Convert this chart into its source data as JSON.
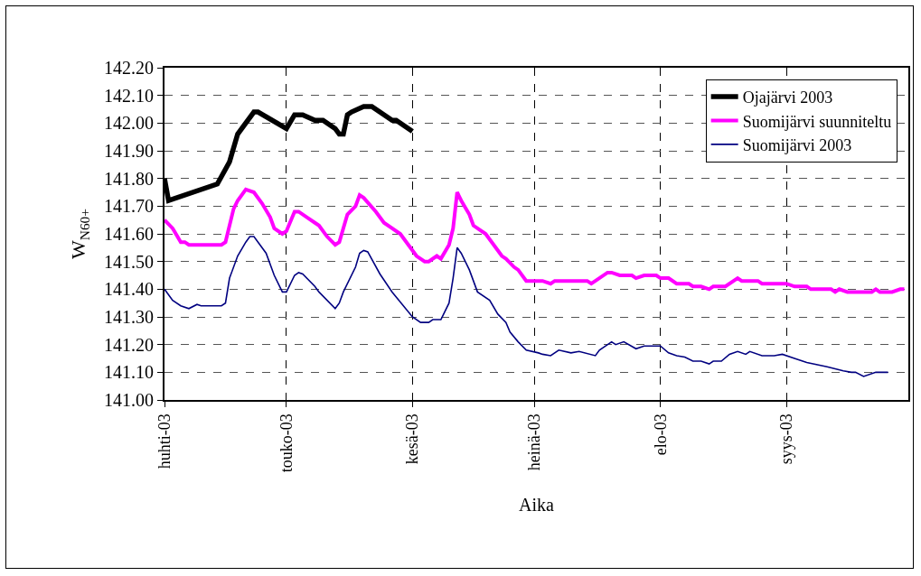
{
  "chart_data": {
    "type": "line",
    "xlabel": "Aika",
    "ylabel": "W$_{N60+}$",
    "legend": "top right",
    "grid": true,
    "line_style": "solid",
    "marker": "none",
    "xlim": [
      "2003-04-01",
      "2003-10-01"
    ],
    "xticks": [
      {
        "value": "2003-04-01",
        "label": "huhti-03"
      },
      {
        "value": "2003-05-01",
        "label": "touko-03"
      },
      {
        "value": "2003-06-01",
        "label": "kesä-03"
      },
      {
        "value": "2003-07-01",
        "label": "heinä-03"
      },
      {
        "value": "2003-08-01",
        "label": "elo-03"
      },
      {
        "value": "2003-09-01",
        "label": "syys-03"
      }
    ],
    "ylim": [
      141.0,
      142.2
    ],
    "yticks": [
      {
        "value": 141.0,
        "label": "141.00"
      },
      {
        "value": 141.1,
        "label": "141.10"
      },
      {
        "value": 141.2,
        "label": "141.20"
      },
      {
        "value": 141.3,
        "label": "141.30"
      },
      {
        "value": 141.4,
        "label": "141.40"
      },
      {
        "value": 141.5,
        "label": "141.50"
      },
      {
        "value": 141.6,
        "label": "141.60"
      },
      {
        "value": 141.7,
        "label": "141.70"
      },
      {
        "value": 141.8,
        "label": "141.80"
      },
      {
        "value": 141.9,
        "label": "141.90"
      },
      {
        "value": 142.0,
        "label": "142.00"
      },
      {
        "value": 142.1,
        "label": "142.10"
      },
      {
        "value": 142.2,
        "label": "142.20"
      }
    ],
    "series": [
      {
        "name": "Ojajärvi 2003",
        "color": "#000000",
        "x": [
          "2003-04-01",
          "2003-04-02",
          "2003-04-14",
          "2003-04-17",
          "2003-04-19",
          "2003-04-23",
          "2003-04-24",
          "2003-05-01",
          "2003-05-03",
          "2003-05-05",
          "2003-05-08",
          "2003-05-10",
          "2003-05-13",
          "2003-05-14",
          "2003-05-15",
          "2003-05-16",
          "2003-05-17",
          "2003-05-20",
          "2003-05-22",
          "2003-05-27",
          "2003-05-28",
          "2003-06-01"
        ],
        "values": [
          141.8,
          141.72,
          141.78,
          141.86,
          141.96,
          142.04,
          142.04,
          141.98,
          142.03,
          142.03,
          142.01,
          142.01,
          141.98,
          141.96,
          141.96,
          142.03,
          142.04,
          142.06,
          142.06,
          142.01,
          142.01,
          141.97
        ]
      },
      {
        "name": "Suomijärvi suunniteltu",
        "color": "#ff00ff",
        "x": [
          "2003-04-01",
          "2003-04-03",
          "2003-04-05",
          "2003-04-06",
          "2003-04-07",
          "2003-04-15",
          "2003-04-16",
          "2003-04-18",
          "2003-04-19",
          "2003-04-21",
          "2003-04-23",
          "2003-04-25",
          "2003-04-27",
          "2003-04-28",
          "2003-04-30",
          "2003-05-01",
          "2003-05-03",
          "2003-05-04",
          "2003-05-06",
          "2003-05-08",
          "2003-05-09",
          "2003-05-11",
          "2003-05-13",
          "2003-05-14",
          "2003-05-16",
          "2003-05-18",
          "2003-05-19",
          "2003-05-20",
          "2003-05-23",
          "2003-05-25",
          "2003-05-29",
          "2003-06-02",
          "2003-06-04",
          "2003-06-05",
          "2003-06-07",
          "2003-06-08",
          "2003-06-10",
          "2003-06-11",
          "2003-06-12",
          "2003-06-13",
          "2003-06-15",
          "2003-06-16",
          "2003-06-19",
          "2003-06-23",
          "2003-06-24",
          "2003-06-26",
          "2003-06-27",
          "2003-06-29",
          "2003-07-03",
          "2003-07-05",
          "2003-07-06",
          "2003-07-14",
          "2003-07-15",
          "2003-07-16",
          "2003-07-19",
          "2003-07-20",
          "2003-07-22",
          "2003-07-25",
          "2003-07-26",
          "2003-07-28",
          "2003-07-31",
          "2003-08-01",
          "2003-08-03",
          "2003-08-05",
          "2003-08-08",
          "2003-08-09",
          "2003-08-11",
          "2003-08-13",
          "2003-08-14",
          "2003-08-17",
          "2003-08-20",
          "2003-08-21",
          "2003-08-25",
          "2003-08-26",
          "2003-09-01",
          "2003-09-03",
          "2003-09-06",
          "2003-09-07",
          "2003-09-12",
          "2003-09-13",
          "2003-09-14",
          "2003-09-16",
          "2003-09-22",
          "2003-09-23",
          "2003-09-24",
          "2003-09-27",
          "2003-09-29",
          "2003-09-30"
        ],
        "values": [
          141.65,
          141.62,
          141.57,
          141.57,
          141.56,
          141.56,
          141.57,
          141.69,
          141.72,
          141.76,
          141.75,
          141.71,
          141.66,
          141.62,
          141.6,
          141.61,
          141.68,
          141.68,
          141.66,
          141.64,
          141.63,
          141.59,
          141.56,
          141.57,
          141.67,
          141.7,
          141.74,
          141.73,
          141.68,
          141.64,
          141.6,
          141.52,
          141.5,
          141.5,
          141.52,
          141.51,
          141.56,
          141.62,
          141.75,
          141.72,
          141.67,
          141.63,
          141.6,
          141.52,
          141.51,
          141.48,
          141.47,
          141.43,
          141.43,
          141.42,
          141.43,
          141.43,
          141.42,
          141.43,
          141.46,
          141.46,
          141.45,
          141.45,
          141.44,
          141.45,
          141.45,
          141.44,
          141.44,
          141.42,
          141.42,
          141.41,
          141.41,
          141.4,
          141.41,
          141.41,
          141.44,
          141.43,
          141.43,
          141.42,
          141.42,
          141.41,
          141.41,
          141.4,
          141.4,
          141.39,
          141.4,
          141.39,
          141.39,
          141.4,
          141.39,
          141.39,
          141.4,
          141.4
        ]
      },
      {
        "name": "Suomijärvi 2003",
        "color": "#000080",
        "x": [
          "2003-04-01",
          "2003-04-03",
          "2003-04-05",
          "2003-04-07",
          "2003-04-09",
          "2003-04-10",
          "2003-04-11",
          "2003-04-15",
          "2003-04-16",
          "2003-04-17",
          "2003-04-19",
          "2003-04-21",
          "2003-04-22",
          "2003-04-23",
          "2003-04-26",
          "2003-04-28",
          "2003-04-30",
          "2003-05-01",
          "2003-05-03",
          "2003-05-04",
          "2003-05-05",
          "2003-05-08",
          "2003-05-09",
          "2003-05-13",
          "2003-05-14",
          "2003-05-15",
          "2003-05-18",
          "2003-05-19",
          "2003-05-20",
          "2003-05-21",
          "2003-05-24",
          "2003-05-27",
          "2003-06-01",
          "2003-06-03",
          "2003-06-05",
          "2003-06-06",
          "2003-06-08",
          "2003-06-09",
          "2003-06-10",
          "2003-06-11",
          "2003-06-12",
          "2003-06-13",
          "2003-06-15",
          "2003-06-17",
          "2003-06-20",
          "2003-06-22",
          "2003-06-24",
          "2003-06-25",
          "2003-06-27",
          "2003-06-29",
          "2003-07-02",
          "2003-07-03",
          "2003-07-05",
          "2003-07-07",
          "2003-07-10",
          "2003-07-12",
          "2003-07-16",
          "2003-07-17",
          "2003-07-20",
          "2003-07-21",
          "2003-07-23",
          "2003-07-26",
          "2003-07-28",
          "2003-07-31",
          "2003-08-01",
          "2003-08-03",
          "2003-08-05",
          "2003-08-07",
          "2003-08-09",
          "2003-08-11",
          "2003-08-13",
          "2003-08-14",
          "2003-08-16",
          "2003-08-18",
          "2003-08-20",
          "2003-08-22",
          "2003-08-23",
          "2003-08-26",
          "2003-08-29",
          "2003-08-31",
          "2003-09-03",
          "2003-09-06",
          "2003-09-11",
          "2003-09-15",
          "2003-09-17",
          "2003-09-18",
          "2003-09-20",
          "2003-09-23",
          "2003-09-24",
          "2003-09-26"
        ],
        "values": [
          141.4,
          141.36,
          141.34,
          141.33,
          141.345,
          141.34,
          141.34,
          141.34,
          141.35,
          141.44,
          141.52,
          141.57,
          141.59,
          141.59,
          141.53,
          141.45,
          141.39,
          141.39,
          141.45,
          141.46,
          141.455,
          141.41,
          141.39,
          141.33,
          141.35,
          141.39,
          141.48,
          141.53,
          141.54,
          141.535,
          141.455,
          141.39,
          141.3,
          141.28,
          141.28,
          141.29,
          141.29,
          141.32,
          141.35,
          141.44,
          141.55,
          141.53,
          141.47,
          141.39,
          141.36,
          141.31,
          141.28,
          141.245,
          141.21,
          141.18,
          141.17,
          141.165,
          141.16,
          141.18,
          141.17,
          141.175,
          141.16,
          141.18,
          141.21,
          141.2,
          141.21,
          141.185,
          141.195,
          141.195,
          141.195,
          141.17,
          141.16,
          141.155,
          141.14,
          141.14,
          141.13,
          141.14,
          141.14,
          141.165,
          141.175,
          141.165,
          141.175,
          141.16,
          141.16,
          141.165,
          141.15,
          141.135,
          141.12,
          141.105,
          141.1,
          141.1,
          141.085,
          141.1,
          141.1,
          141.1
        ]
      }
    ]
  }
}
